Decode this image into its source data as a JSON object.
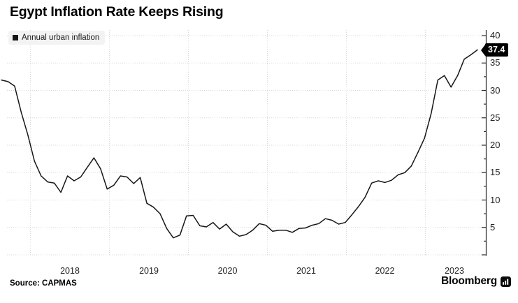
{
  "title": "Egypt Inflation Rate Keeps Rising",
  "legend": {
    "label": "Annual urban inflation"
  },
  "annotation": {
    "value": "37.4"
  },
  "footer": {
    "source": "Source: CAPMAS",
    "brand": "Bloomberg"
  },
  "colors": {
    "line": "#161616",
    "grid": "#d9d9d9",
    "axis": "#2a2a2a",
    "badge_bg": "#000000",
    "badge_text": "#ffffff",
    "legend_bg": "#f3f3f3"
  },
  "chart_data": {
    "type": "line",
    "title": "Egypt Inflation Rate Keeps Rising",
    "legend_entries": [
      "Annual urban inflation"
    ],
    "legend_position": "top-left",
    "grid": true,
    "y_axis_side": "right",
    "ylim": [
      0,
      41
    ],
    "y_ticks": [
      5,
      10,
      15,
      20,
      25,
      30,
      35,
      40
    ],
    "y_minor_tick_step": 2.5,
    "x_tick_labels": [
      "2018",
      "2019",
      "2020",
      "2021",
      "2022",
      "2023"
    ],
    "x_start": "2017-08",
    "x_end": "2023-08",
    "frequency": "monthly",
    "last_point_label": 37.4,
    "series": [
      {
        "name": "Annual urban inflation",
        "values": [
          31.9,
          31.6,
          30.8,
          26.0,
          21.9,
          17.1,
          14.4,
          13.3,
          13.1,
          11.4,
          14.4,
          13.5,
          14.2,
          16.0,
          17.7,
          15.7,
          12.0,
          12.7,
          14.4,
          14.2,
          13.0,
          14.1,
          9.4,
          8.7,
          7.5,
          4.8,
          3.1,
          3.6,
          7.1,
          7.2,
          5.3,
          5.1,
          5.9,
          4.7,
          5.6,
          4.2,
          3.4,
          3.7,
          4.5,
          5.7,
          5.4,
          4.3,
          4.5,
          4.5,
          4.1,
          4.8,
          4.9,
          5.4,
          5.7,
          6.6,
          6.3,
          5.6,
          5.9,
          7.3,
          8.8,
          10.5,
          13.1,
          13.5,
          13.2,
          13.6,
          14.6,
          15.0,
          16.2,
          18.7,
          21.3,
          25.8,
          31.9,
          32.7,
          30.6,
          32.7,
          35.7,
          36.5,
          37.4
        ]
      }
    ]
  }
}
